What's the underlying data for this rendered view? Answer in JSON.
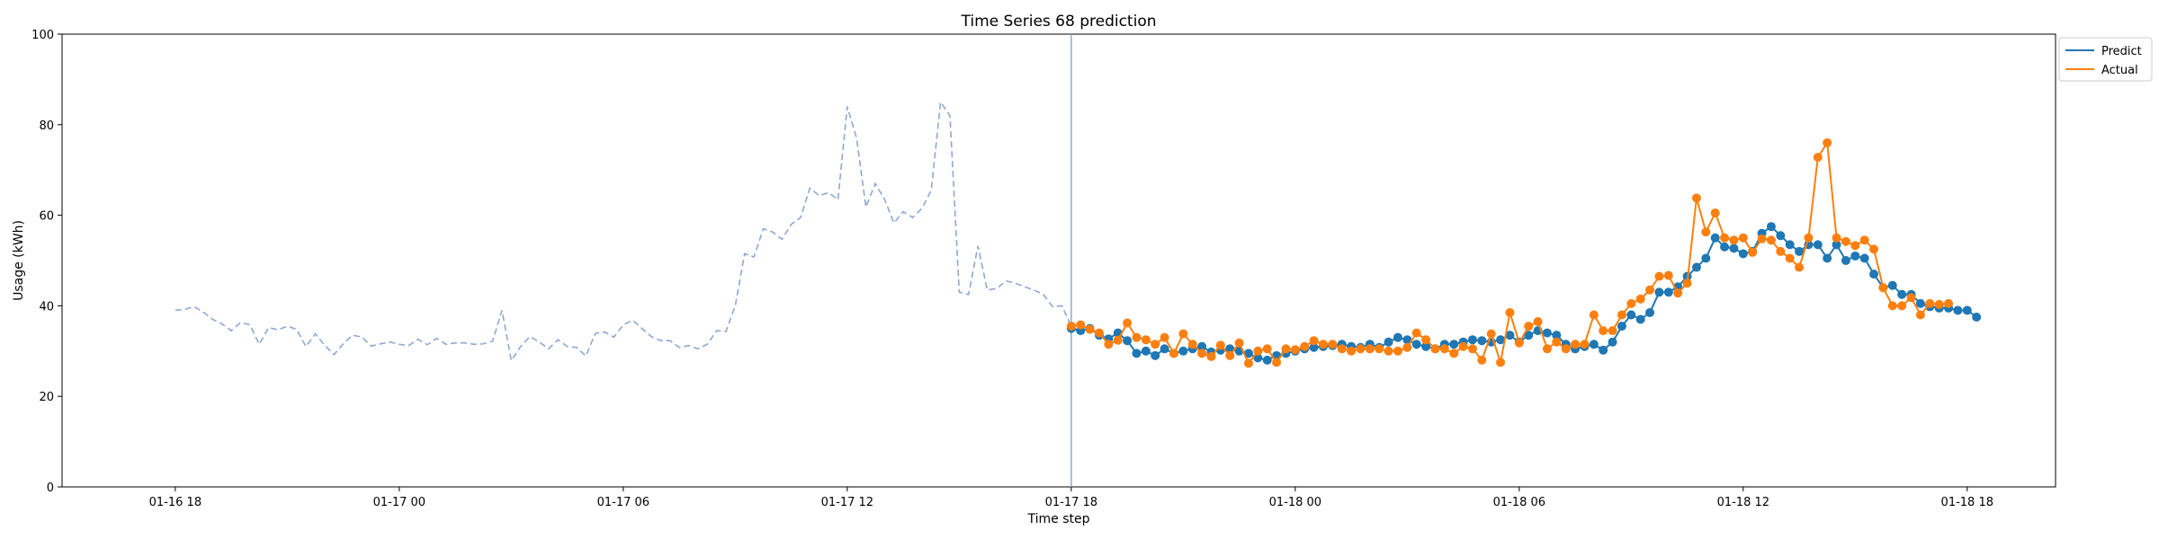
{
  "chart_data": {
    "type": "line",
    "title": "Time Series 68 prediction",
    "xlabel": "Time step",
    "ylabel": "Usage (kWh)",
    "ylim": [
      0,
      100
    ],
    "xlim": [
      "2019-01-16 14:58",
      "2019-01-18 20:22"
    ],
    "x_ticks": [
      "01-16 18",
      "01-17 00",
      "01-17 06",
      "01-17 12",
      "01-17 18",
      "01-18 00",
      "01-18 06",
      "01-18 12",
      "01-18 18"
    ],
    "y_ticks": [
      0,
      20,
      40,
      60,
      80,
      100
    ],
    "grid": false,
    "legend": {
      "placement": "top-right-outside",
      "entries": [
        "Predict",
        "Actual"
      ]
    },
    "colors": {
      "predict": "#1f77b4",
      "actual": "#ff7f0e",
      "history": "#8fa8d0",
      "marker_line": "#8fa8d0"
    },
    "forecast_start": "2019-01-17 18:00",
    "series": [
      {
        "name": "",
        "role": "history",
        "style": "dashed",
        "start": "2019-01-16 18:00",
        "step_minutes": 15,
        "values": [
          39.0,
          39.2,
          39.8,
          38.6,
          37.0,
          36.0,
          34.5,
          36.3,
          35.8,
          31.5,
          35.2,
          34.7,
          35.5,
          34.8,
          31.0,
          33.8,
          31.3,
          29.2,
          31.6,
          33.5,
          33.1,
          31.1,
          31.6,
          32.0,
          31.5,
          31.2,
          32.6,
          31.4,
          32.8,
          31.5,
          31.8,
          31.8,
          31.5,
          31.6,
          32.2,
          39.0,
          27.9,
          31.0,
          33.2,
          32.0,
          30.5,
          32.5,
          31.0,
          30.8,
          28.9,
          33.9,
          34.2,
          33.1,
          35.8,
          36.8,
          35.0,
          33.2,
          32.3,
          32.3,
          30.8,
          31.2,
          30.5,
          31.5,
          34.5,
          34.3,
          40.0,
          51.5,
          50.8,
          57.0,
          56.3,
          54.7,
          58.0,
          59.5,
          66.0,
          64.3,
          65.0,
          63.4,
          84.0,
          77.0,
          61.8,
          67.0,
          63.5,
          58.3,
          60.8,
          59.5,
          61.5,
          65.5,
          85.0,
          82.0,
          43.0,
          42.5,
          53.2,
          43.5,
          43.8,
          45.5,
          45.0,
          44.2,
          43.5,
          42.5,
          39.8,
          40.0,
          35.5
        ]
      },
      {
        "name": "Predict",
        "role": "predict",
        "start": "2019-01-17 18:00",
        "step_minutes": 15,
        "values": [
          35.0,
          34.5,
          35.0,
          33.5,
          32.7,
          34.0,
          32.3,
          29.5,
          30.0,
          29.0,
          30.5,
          29.5,
          30.0,
          30.5,
          31.0,
          29.8,
          30.2,
          30.5,
          30.0,
          29.5,
          28.5,
          28.0,
          29.0,
          29.5,
          30.0,
          30.5,
          30.8,
          31.0,
          31.2,
          31.5,
          31.0,
          30.8,
          31.5,
          30.8,
          32.0,
          33.0,
          32.5,
          31.5,
          31.0,
          30.5,
          31.5,
          31.5,
          32.0,
          32.5,
          32.3,
          32.0,
          32.5,
          33.5,
          32.0,
          33.5,
          34.5,
          34.0,
          33.5,
          31.5,
          30.5,
          31.0,
          31.5,
          30.2,
          32.0,
          35.5,
          38.0,
          37.0,
          38.5,
          43.0,
          43.0,
          44.2,
          46.5,
          48.5,
          50.5,
          55.0,
          53.0,
          52.7,
          51.5,
          52.0,
          56.0,
          57.5,
          55.5,
          53.5,
          52.0,
          53.5,
          53.5,
          50.5,
          53.5,
          50.0,
          51.0,
          50.5,
          47.0,
          44.0,
          44.5,
          42.5,
          42.5,
          40.5,
          39.8,
          39.5,
          39.5,
          39.0,
          39.0,
          37.5
        ]
      },
      {
        "name": "Actual",
        "role": "actual",
        "start": "2019-01-17 18:00",
        "step_minutes": 15,
        "values": [
          35.5,
          35.8,
          34.8,
          34.0,
          31.5,
          32.4,
          36.2,
          33.0,
          32.5,
          31.5,
          33.0,
          29.5,
          33.8,
          31.5,
          29.5,
          28.8,
          31.3,
          29.0,
          31.8,
          27.3,
          30.0,
          30.5,
          27.5,
          30.5,
          30.3,
          31.0,
          32.3,
          31.5,
          31.5,
          30.5,
          30.0,
          30.5,
          30.5,
          30.5,
          30.0,
          30.0,
          30.8,
          34.0,
          32.5,
          30.5,
          30.5,
          29.5,
          31.0,
          30.5,
          28.0,
          33.8,
          27.5,
          38.5,
          31.8,
          35.5,
          36.5,
          30.5,
          32.0,
          30.5,
          31.5,
          31.5,
          38.0,
          34.5,
          34.5,
          38.0,
          40.5,
          41.5,
          43.5,
          46.5,
          46.7,
          42.8,
          45.0,
          63.8,
          56.3,
          60.5,
          55.0,
          54.5,
          55.0,
          51.8,
          54.8,
          54.5,
          52.0,
          50.5,
          48.5,
          55.0,
          72.8,
          76.0,
          55.0,
          54.2,
          53.3,
          54.5,
          52.5,
          44.0,
          40.0,
          40.0,
          41.8,
          38.0,
          40.5,
          40.3,
          40.5
        ]
      }
    ]
  }
}
